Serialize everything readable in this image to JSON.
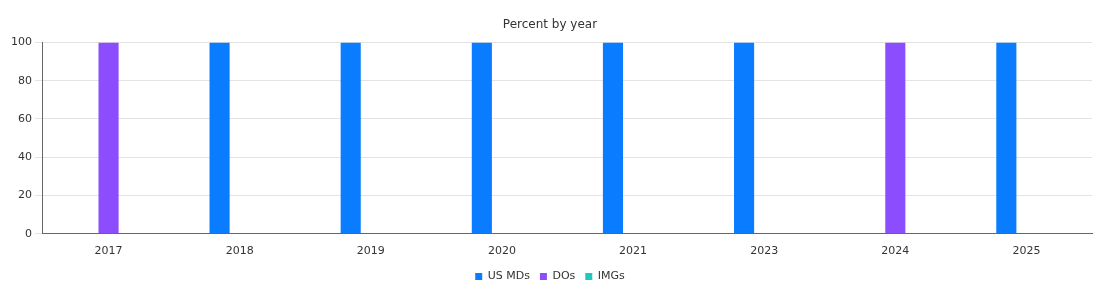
{
  "chart_data": {
    "type": "bar",
    "title": "Percent by year",
    "categories": [
      "2017",
      "2018",
      "2019",
      "2020",
      "2021",
      "2023",
      "2024",
      "2025"
    ],
    "series": [
      {
        "name": "US MDs",
        "color": "#0a7cff",
        "values": [
          0,
          100,
          100,
          100,
          100,
          100,
          0,
          100
        ]
      },
      {
        "name": "DOs",
        "color": "#8c4dff",
        "values": [
          100,
          0,
          0,
          0,
          0,
          0,
          100,
          0
        ]
      },
      {
        "name": "IMGs",
        "color": "#1cc8c0",
        "values": [
          0,
          0,
          0,
          0,
          0,
          0,
          0,
          0
        ]
      }
    ],
    "ylim": [
      0,
      100
    ],
    "yticks": [
      0,
      20,
      40,
      60,
      80,
      100
    ],
    "grid": "y",
    "legend": "bottom"
  }
}
